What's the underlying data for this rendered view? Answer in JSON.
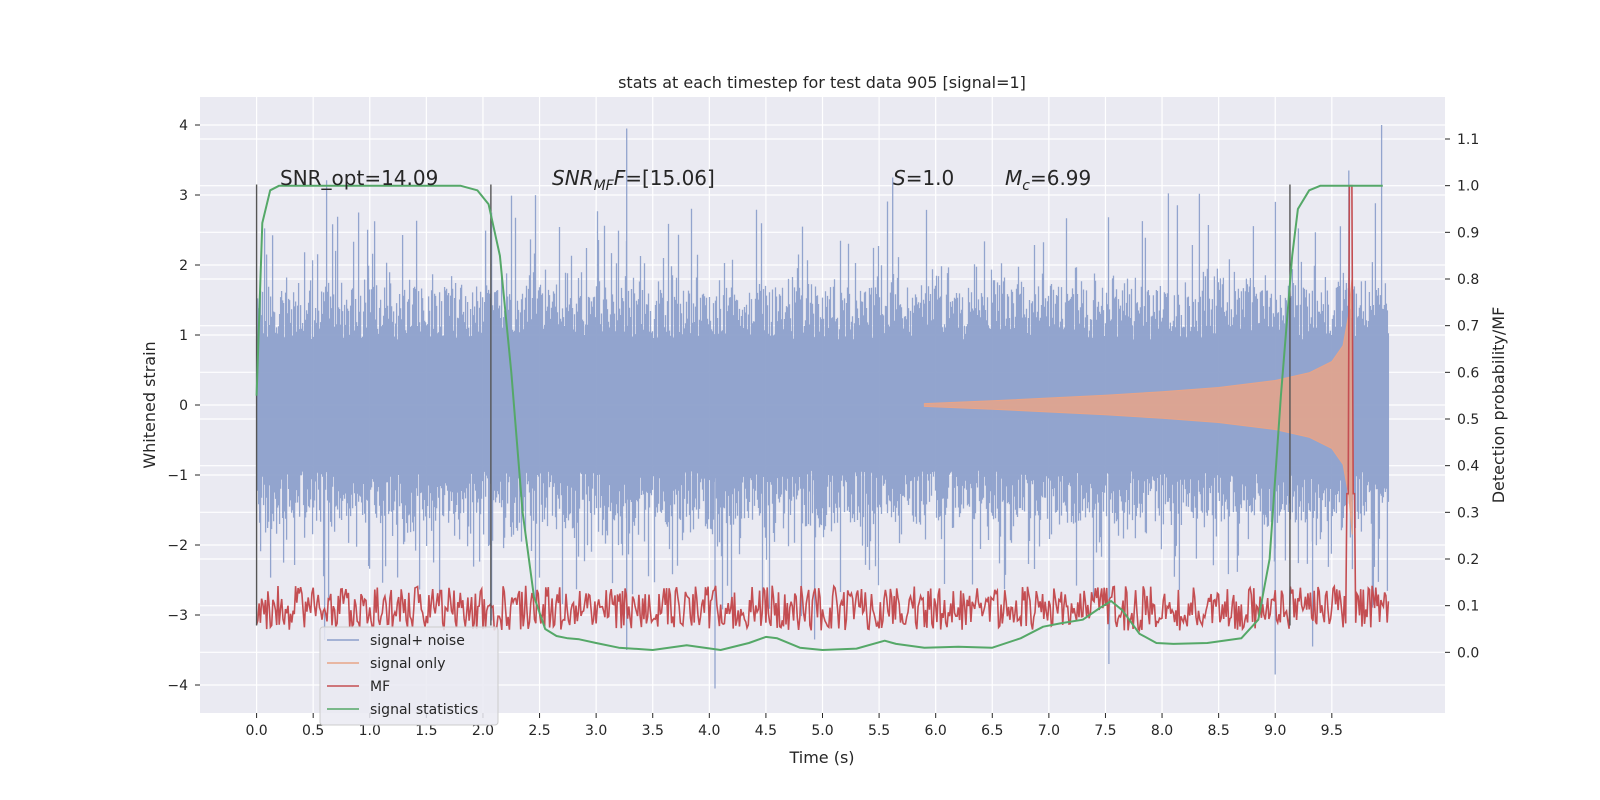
{
  "chart_data": {
    "type": "line",
    "title": "stats at each timestep for test data 905 [signal=1]",
    "xlabel": "Time (s)",
    "ylabel": "Whitened strain",
    "y2label": "Detection probability/MF",
    "xlim": [
      -0.5,
      10.5
    ],
    "ylim": [
      -4.4,
      4.4
    ],
    "y2lim": [
      -0.13,
      1.19
    ],
    "x_ticks": [
      0.0,
      0.5,
      1.0,
      1.5,
      2.0,
      2.5,
      3.0,
      3.5,
      4.0,
      4.5,
      5.0,
      5.5,
      6.0,
      6.5,
      7.0,
      7.5,
      8.0,
      8.5,
      9.0,
      9.5
    ],
    "x_tick_labels": [
      "0.0",
      "0.5",
      "1.0",
      "1.5",
      "2.0",
      "2.5",
      "3.0",
      "3.5",
      "4.0",
      "4.5",
      "5.0",
      "5.5",
      "6.0",
      "6.5",
      "7.0",
      "7.5",
      "8.0",
      "8.5",
      "9.0",
      "9.5"
    ],
    "y_ticks": [
      4,
      3,
      2,
      1,
      0,
      -1,
      -2,
      -3,
      -4
    ],
    "y_tick_labels": [
      "4",
      "3",
      "2",
      "1",
      "0",
      "−1",
      "−2",
      "−3",
      "−4"
    ],
    "y2_ticks": [
      1.1,
      1.0,
      0.9,
      0.8,
      0.7,
      0.6,
      0.5,
      0.4,
      0.3,
      0.2,
      0.1,
      0.0
    ],
    "y2_tick_labels": [
      "1.1",
      "1.0",
      "0.9",
      "0.8",
      "0.7",
      "0.6",
      "0.5",
      "0.4",
      "0.3",
      "0.2",
      "0.1",
      "0.0"
    ],
    "grid": true,
    "legend_position": "bottom-left",
    "legend": [
      {
        "label": "signal+ noise",
        "color": "#8da0cb"
      },
      {
        "label": "signal only",
        "color": "#e8a488"
      },
      {
        "label": "MF",
        "color": "#c44e52"
      },
      {
        "label": "signal statistics",
        "color": "#55a868"
      }
    ],
    "annotations": {
      "snr_opt": "SNR_opt=14.09",
      "snr_mf_a": "SNR",
      "snr_mf_sub": "MF",
      "snr_mf_b": "=[15.06]",
      "s_a": "S",
      "s_b": "=1.0",
      "mc_a": "M",
      "mc_sub": "c",
      "mc_b": "=6.99"
    },
    "vlines_x": [
      0.0,
      2.07,
      9.13
    ],
    "series": [
      {
        "name": "signal+ noise",
        "color": "#8da0cb",
        "x_range": [
          0.0,
          10.0
        ],
        "typical_envelope": [
          -1.7,
          1.7
        ],
        "spike_maxima": [
          {
            "x": 3.27,
            "y": 3.95
          },
          {
            "x": 9.94,
            "y": 4.0
          },
          {
            "x": 9.65,
            "y": 3.35
          },
          {
            "x": 5.62,
            "y": 3.25
          },
          {
            "x": 4.05,
            "y": -4.05
          },
          {
            "x": 3.27,
            "y": -3.5
          },
          {
            "x": 9.0,
            "y": -3.85
          },
          {
            "x": 7.53,
            "y": -3.7
          },
          {
            "x": 4.93,
            "y": -3.35
          },
          {
            "x": 9.33,
            "y": -3.45
          }
        ]
      },
      {
        "name": "signal only",
        "color": "#e8a488",
        "x": [
          5.9,
          6.5,
          7.0,
          7.5,
          8.0,
          8.5,
          9.0,
          9.3,
          9.5,
          9.6,
          9.65,
          9.68
        ],
        "envelope": [
          0.02,
          0.06,
          0.1,
          0.14,
          0.19,
          0.25,
          0.35,
          0.46,
          0.62,
          0.85,
          1.3,
          1.85
        ]
      },
      {
        "name": "MF",
        "color": "#c44e52",
        "x_range": [
          0.0,
          10.0
        ],
        "baseline": 0.09,
        "noise_amplitude": 0.06,
        "peak": {
          "x": 9.67,
          "y": 1.0
        }
      },
      {
        "name": "signal statistics",
        "color": "#55a868",
        "x": [
          0.0,
          0.05,
          0.12,
          0.2,
          0.4,
          1.0,
          1.5,
          1.8,
          1.95,
          2.05,
          2.15,
          2.25,
          2.35,
          2.45,
          2.55,
          2.65,
          2.75,
          2.85,
          3.0,
          3.2,
          3.5,
          3.8,
          4.1,
          4.35,
          4.5,
          4.6,
          4.8,
          5.0,
          5.3,
          5.55,
          5.65,
          5.9,
          6.2,
          6.5,
          6.75,
          6.95,
          7.1,
          7.3,
          7.45,
          7.55,
          7.65,
          7.8,
          7.95,
          8.1,
          8.4,
          8.7,
          8.85,
          8.95,
          9.05,
          9.15,
          9.2,
          9.3,
          9.4,
          9.5,
          9.7,
          9.95
        ],
        "y": [
          0.55,
          0.92,
          0.99,
          1.0,
          1.0,
          1.0,
          1.0,
          1.0,
          0.99,
          0.96,
          0.85,
          0.6,
          0.3,
          0.12,
          0.05,
          0.035,
          0.03,
          0.028,
          0.02,
          0.01,
          0.005,
          0.015,
          0.005,
          0.02,
          0.033,
          0.03,
          0.01,
          0.005,
          0.008,
          0.025,
          0.018,
          0.01,
          0.012,
          0.01,
          0.03,
          0.055,
          0.062,
          0.07,
          0.095,
          0.11,
          0.09,
          0.04,
          0.02,
          0.018,
          0.02,
          0.03,
          0.07,
          0.2,
          0.55,
          0.85,
          0.95,
          0.99,
          1.0,
          1.0,
          1.0,
          1.0
        ]
      }
    ]
  }
}
